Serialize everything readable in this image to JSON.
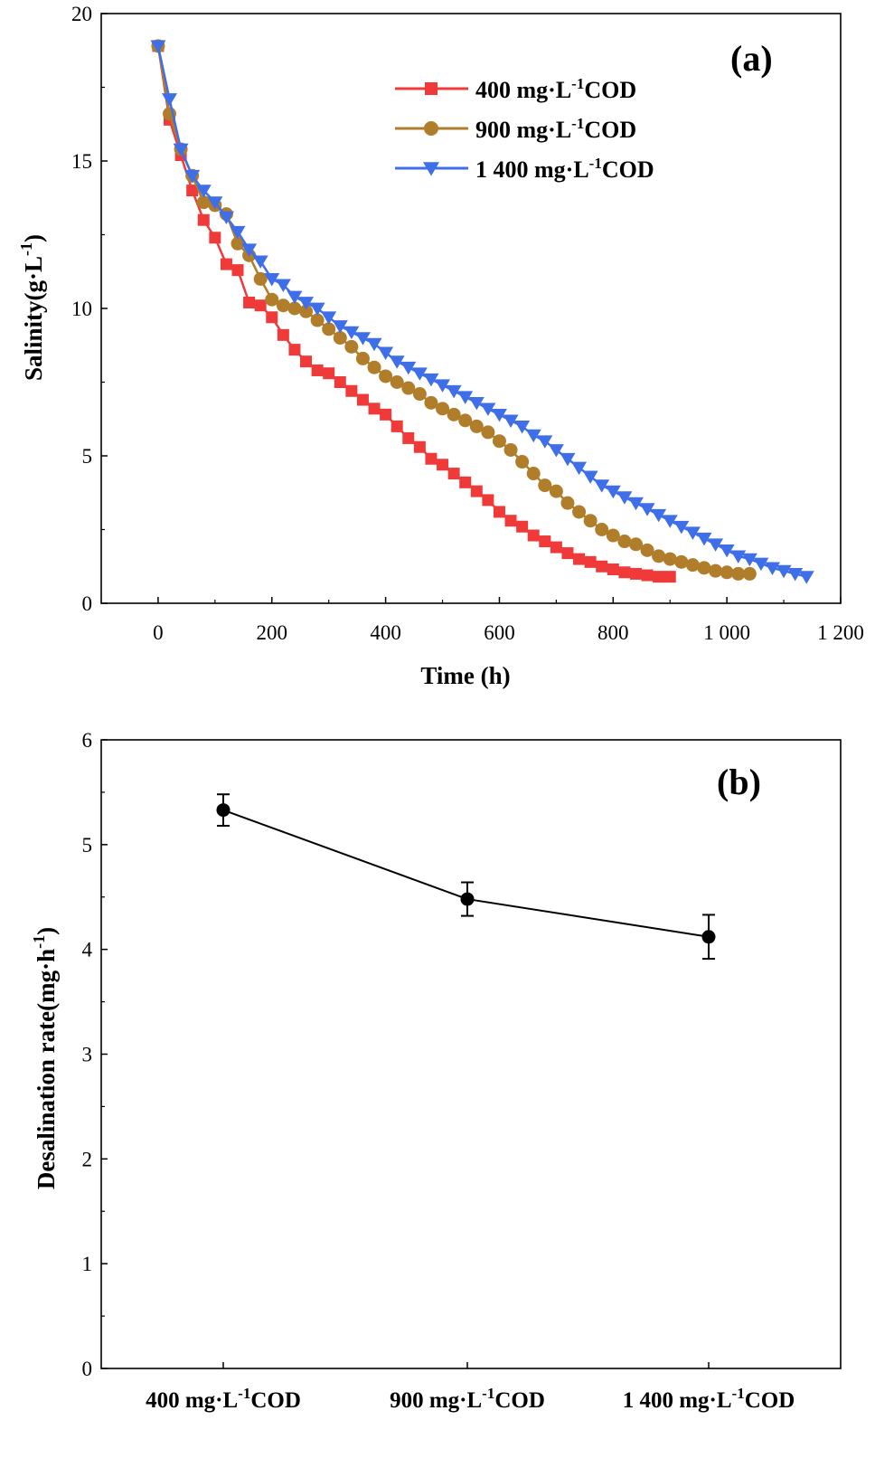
{
  "chart_data": [
    {
      "panel": "(a)",
      "type": "line",
      "xlabel": "Time (h)",
      "ylabel": "Salinity(g·L⁻¹)",
      "ylabel_main": "Salinity(g·L",
      "ylabel_sup": "-1",
      "ylabel_close": ")",
      "xlim": [
        -100,
        1200
      ],
      "ylim": [
        0,
        20
      ],
      "xticks": [
        "0",
        "200",
        "400",
        "600",
        "800",
        "1 000",
        "1 200"
      ],
      "yticks": [
        "0",
        "5",
        "10",
        "15",
        "20"
      ],
      "legend_position": "top-center",
      "series": [
        {
          "name_main": "400 mg·L",
          "name_sup": "-1",
          "name_tail": "COD",
          "color": "#f03a3a",
          "marker": "square",
          "x": [
            0,
            20,
            40,
            60,
            80,
            100,
            120,
            140,
            160,
            180,
            200,
            220,
            240,
            260,
            280,
            300,
            320,
            340,
            360,
            380,
            400,
            420,
            440,
            460,
            480,
            500,
            520,
            540,
            560,
            580,
            600,
            620,
            640,
            660,
            680,
            700,
            720,
            740,
            760,
            780,
            800,
            820,
            840,
            860,
            880,
            900
          ],
          "y": [
            18.9,
            16.4,
            15.2,
            14.0,
            13.0,
            12.4,
            11.5,
            11.3,
            10.2,
            10.1,
            9.7,
            9.1,
            8.6,
            8.2,
            7.9,
            7.8,
            7.5,
            7.2,
            6.9,
            6.6,
            6.4,
            6.0,
            5.6,
            5.3,
            4.9,
            4.7,
            4.4,
            4.1,
            3.8,
            3.5,
            3.1,
            2.8,
            2.6,
            2.3,
            2.1,
            1.9,
            1.7,
            1.5,
            1.4,
            1.25,
            1.15,
            1.05,
            1.0,
            0.95,
            0.9,
            0.9
          ]
        },
        {
          "name_main": "900 mg·L",
          "name_sup": "-1",
          "name_tail": "COD",
          "color": "#b07d2a",
          "marker": "circle",
          "x": [
            0,
            20,
            40,
            60,
            80,
            100,
            120,
            140,
            160,
            180,
            200,
            220,
            240,
            260,
            280,
            300,
            320,
            340,
            360,
            380,
            400,
            420,
            440,
            460,
            480,
            500,
            520,
            540,
            560,
            580,
            600,
            620,
            640,
            660,
            680,
            700,
            720,
            740,
            760,
            780,
            800,
            820,
            840,
            860,
            880,
            900,
            920,
            940,
            960,
            980,
            1000,
            1020,
            1040
          ],
          "y": [
            18.9,
            16.6,
            15.4,
            14.5,
            13.6,
            13.5,
            13.2,
            12.2,
            11.8,
            11.0,
            10.3,
            10.1,
            10.0,
            9.9,
            9.6,
            9.3,
            9.0,
            8.7,
            8.3,
            8.0,
            7.7,
            7.5,
            7.3,
            7.1,
            6.8,
            6.6,
            6.4,
            6.2,
            6.0,
            5.8,
            5.5,
            5.2,
            4.8,
            4.4,
            4.0,
            3.8,
            3.4,
            3.1,
            2.8,
            2.5,
            2.3,
            2.1,
            2.0,
            1.8,
            1.6,
            1.5,
            1.4,
            1.3,
            1.2,
            1.1,
            1.05,
            1.0,
            1.0
          ]
        },
        {
          "name_main": "1 400 mg·L",
          "name_sup": "-1",
          "name_tail": "COD",
          "color": "#3f6fe8",
          "marker": "triangle-down",
          "x": [
            0,
            20,
            40,
            60,
            80,
            100,
            120,
            140,
            160,
            180,
            200,
            220,
            240,
            260,
            280,
            300,
            320,
            340,
            360,
            380,
            400,
            420,
            440,
            460,
            480,
            500,
            520,
            540,
            560,
            580,
            600,
            620,
            640,
            660,
            680,
            700,
            720,
            740,
            760,
            780,
            800,
            820,
            840,
            860,
            880,
            900,
            920,
            940,
            960,
            980,
            1000,
            1020,
            1040,
            1060,
            1080,
            1100,
            1120,
            1140
          ],
          "y": [
            18.9,
            17.1,
            15.4,
            14.5,
            14.0,
            13.6,
            13.1,
            12.6,
            12.0,
            11.6,
            11.0,
            10.8,
            10.4,
            10.2,
            10.0,
            9.7,
            9.4,
            9.2,
            9.0,
            8.8,
            8.5,
            8.2,
            8.0,
            7.8,
            7.6,
            7.4,
            7.2,
            7.0,
            6.8,
            6.6,
            6.4,
            6.2,
            6.0,
            5.7,
            5.5,
            5.2,
            4.9,
            4.6,
            4.3,
            4.0,
            3.8,
            3.6,
            3.4,
            3.2,
            3.0,
            2.8,
            2.6,
            2.4,
            2.2,
            2.0,
            1.8,
            1.6,
            1.5,
            1.35,
            1.2,
            1.1,
            1.0,
            0.9
          ]
        }
      ]
    },
    {
      "panel": "(b)",
      "type": "line",
      "ylabel_main": "Desalination rate(mg·h",
      "ylabel_sup": "-1",
      "ylabel_close": ")",
      "ylim": [
        0,
        6
      ],
      "yticks": [
        "0",
        "1",
        "2",
        "3",
        "4",
        "5",
        "6"
      ],
      "categories": [
        {
          "main": "400 mg·L",
          "sup": "-1",
          "tail": "COD"
        },
        {
          "main": "900 mg·L",
          "sup": "-1",
          "tail": "COD"
        },
        {
          "main": "1 400 mg·L",
          "sup": "-1",
          "tail": "COD"
        }
      ],
      "values": [
        5.33,
        4.48,
        4.12
      ],
      "errors": [
        0.15,
        0.16,
        0.21
      ],
      "color": "#000000"
    }
  ]
}
